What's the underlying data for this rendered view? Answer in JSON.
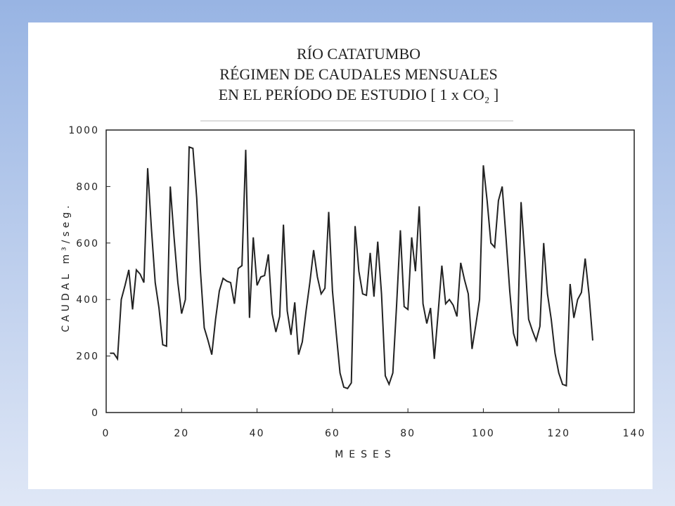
{
  "chart_data": {
    "type": "line",
    "title": [
      "RÍO  CATATUMBO",
      "RÉGIMEN DE CAUDALES MENSUALES",
      "EN EL PERÍODO DE ESTUDIO [ 1 x CO₂ ]"
    ],
    "x_label": "MESES",
    "y_label": "CAUDAL m³/seg.",
    "xlim": [
      0,
      140
    ],
    "ylim": [
      0,
      1000
    ],
    "xticks": [
      0,
      20,
      40,
      60,
      80,
      100,
      120,
      140
    ],
    "yticks": [
      0,
      200,
      400,
      600,
      800,
      1000
    ],
    "color": "#222222",
    "x": [
      1,
      2,
      3,
      4,
      5,
      6,
      7,
      8,
      9,
      10,
      11,
      12,
      13,
      14,
      15,
      16,
      17,
      18,
      19,
      20,
      21,
      22,
      23,
      24,
      25,
      26,
      27,
      28,
      29,
      30,
      31,
      32,
      33,
      34,
      35,
      36,
      37,
      38,
      39,
      40,
      41,
      42,
      43,
      44,
      45,
      46,
      47,
      48,
      49,
      50,
      51,
      52,
      53,
      54,
      55,
      56,
      57,
      58,
      59,
      60,
      61,
      62,
      63,
      64,
      65,
      66,
      67,
      68,
      69,
      70,
      71,
      72,
      73,
      74,
      75,
      76,
      77,
      78,
      79,
      80,
      81,
      82,
      83,
      84,
      85,
      86,
      87,
      88,
      89,
      90,
      91,
      92,
      93,
      94,
      95,
      96,
      97,
      98,
      99,
      100,
      101,
      102,
      103,
      104,
      105,
      106,
      107,
      108,
      109,
      110,
      111,
      112,
      113,
      114,
      115,
      116,
      117,
      118,
      119,
      120,
      121,
      122,
      123,
      124,
      125,
      126,
      127,
      128,
      129
    ],
    "values": [
      210,
      210,
      190,
      400,
      450,
      505,
      365,
      505,
      490,
      460,
      865,
      650,
      460,
      370,
      240,
      235,
      800,
      620,
      460,
      350,
      400,
      940,
      935,
      760,
      500,
      300,
      255,
      205,
      330,
      430,
      475,
      465,
      460,
      385,
      510,
      520,
      930,
      335,
      620,
      450,
      480,
      485,
      560,
      350,
      285,
      340,
      665,
      360,
      275,
      390,
      205,
      250,
      360,
      460,
      575,
      480,
      420,
      440,
      710,
      430,
      280,
      140,
      90,
      85,
      105,
      660,
      500,
      420,
      415,
      565,
      410,
      605,
      420,
      130,
      100,
      140,
      380,
      645,
      375,
      365,
      620,
      500,
      730,
      385,
      315,
      370,
      190,
      350,
      520,
      385,
      400,
      380,
      340,
      530,
      470,
      420,
      225,
      310,
      400,
      875,
      750,
      600,
      585,
      750,
      800,
      620,
      430,
      280,
      235,
      745,
      550,
      330,
      290,
      255,
      305,
      600,
      420,
      330,
      210,
      140,
      100,
      95,
      455,
      335,
      400,
      425,
      545,
      420,
      255
    ]
  }
}
